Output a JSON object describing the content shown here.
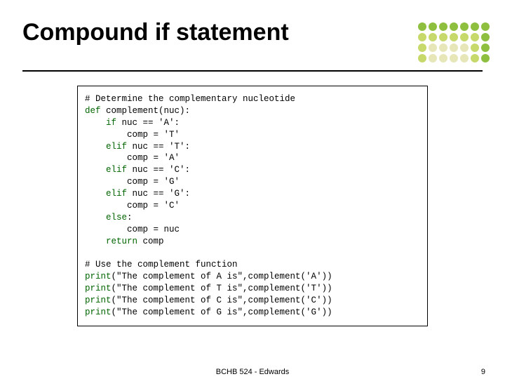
{
  "title": "Compound if statement",
  "code": {
    "lines": [
      {
        "text": "# Determine the complementary nucleotide",
        "kw": []
      },
      {
        "text": "def complement(nuc):",
        "kw": [
          "def"
        ]
      },
      {
        "text": "    if nuc == 'A':",
        "kw": [
          "if"
        ]
      },
      {
        "text": "        comp = 'T'",
        "kw": []
      },
      {
        "text": "    elif nuc == 'T':",
        "kw": [
          "elif"
        ]
      },
      {
        "text": "        comp = 'A'",
        "kw": []
      },
      {
        "text": "    elif nuc == 'C':",
        "kw": [
          "elif"
        ]
      },
      {
        "text": "        comp = 'G'",
        "kw": []
      },
      {
        "text": "    elif nuc == 'G':",
        "kw": [
          "elif"
        ]
      },
      {
        "text": "        comp = 'C'",
        "kw": []
      },
      {
        "text": "    else:",
        "kw": [
          "else"
        ]
      },
      {
        "text": "        comp = nuc",
        "kw": []
      },
      {
        "text": "    return comp",
        "kw": [
          "return"
        ]
      },
      {
        "text": "",
        "kw": []
      },
      {
        "text": "# Use the complement function",
        "kw": []
      },
      {
        "text": "print(\"The complement of A is\",complement('A'))",
        "kw": [
          "print"
        ]
      },
      {
        "text": "print(\"The complement of T is\",complement('T'))",
        "kw": [
          "print"
        ]
      },
      {
        "text": "print(\"The complement of C is\",complement('C'))",
        "kw": [
          "print"
        ]
      },
      {
        "text": "print(\"The complement of G is\",complement('G'))",
        "kw": [
          "print"
        ]
      }
    ]
  },
  "decor": {
    "dot_colors": [
      [
        "#8fbf3f",
        "#8fbf3f",
        "#8fbf3f",
        "#8fbf3f",
        "#8fbf3f",
        "#8fbf3f",
        "#8fbf3f"
      ],
      [
        "#c6d96a",
        "#c6d96a",
        "#c6d96a",
        "#c6d96a",
        "#c6d96a",
        "#c6d96a",
        "#8fbf3f"
      ],
      [
        "#c6d96a",
        "#e6e6b8",
        "#e6e6b8",
        "#e6e6b8",
        "#e6e6b8",
        "#c6d96a",
        "#8fbf3f"
      ],
      [
        "#c6d96a",
        "#e6e6b8",
        "#e6e6b8",
        "#e6e6b8",
        "#e6e6b8",
        "#c6d96a",
        "#8fbf3f"
      ]
    ]
  },
  "footer": {
    "center": "BCHB 524 - Edwards",
    "page": "9"
  }
}
